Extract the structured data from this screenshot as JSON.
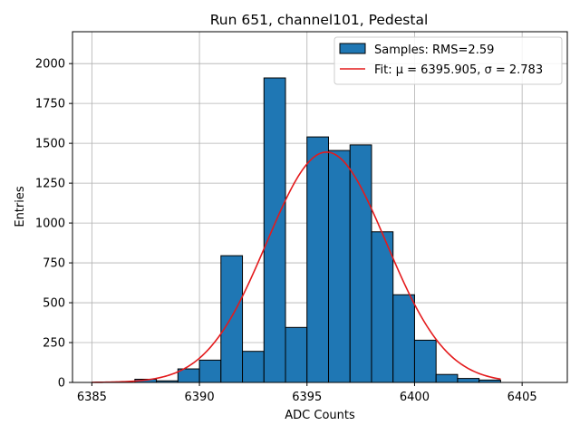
{
  "chart_data": {
    "type": "bar",
    "title": "Run 651, channel101, Pedestal",
    "xlabel": "ADC Counts",
    "ylabel": "Entries",
    "xlim": [
      6384.1,
      6407.1
    ],
    "ylim": [
      0,
      2200
    ],
    "xticks": [
      6385,
      6390,
      6395,
      6400,
      6405
    ],
    "yticks": [
      0,
      250,
      500,
      750,
      1000,
      1250,
      1500,
      1750,
      2000
    ],
    "grid": true,
    "legend_position": "top-right",
    "colors": {
      "bars": "#1f77b4",
      "bar_edge": "#000000",
      "fit": "#e41a1c"
    },
    "histogram": {
      "name": "Samples: RMS=2.59",
      "bin_edges": [
        6387,
        6388,
        6389,
        6390,
        6391,
        6392,
        6393,
        6394,
        6395,
        6396,
        6397,
        6398,
        6399,
        6400,
        6401,
        6402,
        6403,
        6404
      ],
      "counts": [
        20,
        10,
        85,
        140,
        795,
        195,
        1910,
        345,
        1540,
        1455,
        1490,
        945,
        550,
        265,
        50,
        25,
        15
      ]
    },
    "fit": {
      "name": "Fit: μ = 6395.905, σ = 2.783",
      "mu": 6395.905,
      "sigma": 2.783,
      "amplitude": 1445,
      "x_range": [
        6385,
        6404
      ]
    }
  }
}
